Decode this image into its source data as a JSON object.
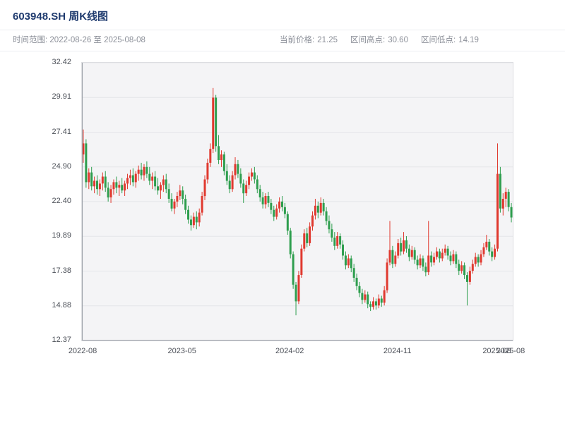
{
  "header": {
    "title": "603948.SH 周K线图"
  },
  "info_bar": {
    "time_range_label": "时间范围:",
    "time_range_value": "2022-08-26 至 2025-08-08",
    "stats": [
      {
        "label": "当前价格:",
        "value": "21.25"
      },
      {
        "label": "区间高点:",
        "value": "30.60"
      },
      {
        "label": "区间低点:",
        "value": "14.19"
      }
    ]
  },
  "colors": {
    "title": "#1e3a6e",
    "text_muted": "#8c9099",
    "axis_text": "#4d5159",
    "plot_bg": "#f4f4f6",
    "grid": "#e4e5e9",
    "axis_line": "#9ba0a8",
    "up": "#e0392f",
    "down": "#2e9e4e"
  },
  "chart_data": {
    "type": "candlestick",
    "title": "603948.SH 周K线图",
    "xlabel": "",
    "ylabel": "",
    "interval": "weekly",
    "grid": true,
    "legend": "none",
    "ylim": [
      12.37,
      32.42
    ],
    "y_ticks": [
      12.37,
      14.88,
      17.38,
      19.89,
      22.4,
      24.9,
      27.41,
      29.91,
      32.42
    ],
    "y_tick_labels": [
      "12.37",
      "14.88",
      "17.38",
      "19.89",
      "22.40",
      "24.90",
      "27.41",
      "29.91",
      "32.42"
    ],
    "x_ticks": [
      {
        "label": "2022-08",
        "week": 0
      },
      {
        "label": "2023-05",
        "week": 36
      },
      {
        "label": "2024-02",
        "week": 75
      },
      {
        "label": "2024-11",
        "week": 114
      },
      {
        "label": "2025-08",
        "week": 150
      },
      {
        "label": "2025-08",
        "week": 155
      }
    ],
    "up_color": "#e0392f",
    "down_color": "#2e9e4e",
    "ohlc_columns": [
      "open",
      "high",
      "low",
      "close"
    ],
    "ohlc": [
      [
        25.8,
        27.6,
        25.2,
        26.6
      ],
      [
        26.6,
        26.9,
        23.4,
        23.8
      ],
      [
        23.8,
        24.8,
        23.3,
        24.5
      ],
      [
        24.5,
        24.9,
        23.2,
        23.5
      ],
      [
        23.5,
        24.2,
        23.0,
        23.9
      ],
      [
        23.9,
        24.3,
        22.9,
        23.3
      ],
      [
        23.3,
        24.0,
        22.8,
        23.7
      ],
      [
        23.7,
        24.5,
        23.2,
        24.2
      ],
      [
        24.2,
        24.6,
        23.1,
        23.4
      ],
      [
        23.4,
        23.8,
        22.4,
        22.7
      ],
      [
        22.7,
        23.6,
        22.3,
        23.3
      ],
      [
        23.3,
        24.0,
        22.9,
        23.8
      ],
      [
        23.8,
        24.2,
        23.0,
        23.4
      ],
      [
        23.4,
        23.9,
        22.8,
        23.6
      ],
      [
        23.6,
        24.1,
        23.0,
        23.2
      ],
      [
        23.2,
        23.9,
        22.8,
        23.7
      ],
      [
        23.7,
        24.4,
        23.3,
        24.1
      ],
      [
        24.1,
        24.7,
        23.6,
        24.3
      ],
      [
        24.3,
        24.8,
        23.5,
        23.8
      ],
      [
        23.8,
        24.6,
        23.4,
        24.4
      ],
      [
        24.4,
        25.0,
        23.9,
        24.7
      ],
      [
        24.7,
        25.2,
        24.0,
        24.3
      ],
      [
        24.3,
        25.1,
        23.9,
        24.9
      ],
      [
        24.9,
        25.3,
        24.1,
        24.4
      ],
      [
        24.4,
        24.9,
        23.6,
        23.9
      ],
      [
        23.9,
        24.5,
        23.3,
        24.2
      ],
      [
        24.2,
        24.6,
        23.2,
        23.5
      ],
      [
        23.5,
        24.1,
        22.9,
        23.2
      ],
      [
        23.2,
        23.8,
        22.6,
        23.6
      ],
      [
        23.6,
        24.3,
        23.1,
        24.0
      ],
      [
        24.0,
        24.4,
        23.0,
        23.3
      ],
      [
        23.3,
        23.7,
        22.3,
        22.6
      ],
      [
        22.6,
        23.0,
        21.7,
        21.9
      ],
      [
        21.9,
        22.6,
        21.5,
        22.4
      ],
      [
        22.4,
        23.1,
        22.0,
        22.8
      ],
      [
        22.8,
        23.6,
        22.5,
        23.2
      ],
      [
        23.2,
        23.5,
        22.2,
        22.6
      ],
      [
        22.6,
        22.9,
        21.5,
        21.8
      ],
      [
        21.8,
        22.1,
        20.8,
        21.1
      ],
      [
        21.1,
        21.4,
        20.3,
        20.7
      ],
      [
        20.7,
        21.6,
        20.5,
        21.3
      ],
      [
        21.3,
        21.7,
        20.4,
        20.9
      ],
      [
        20.9,
        21.9,
        20.6,
        21.6
      ],
      [
        21.6,
        23.1,
        21.4,
        22.8
      ],
      [
        22.8,
        24.3,
        22.5,
        24.0
      ],
      [
        24.0,
        25.5,
        23.7,
        25.2
      ],
      [
        25.2,
        26.6,
        24.9,
        26.2
      ],
      [
        26.2,
        30.6,
        25.9,
        29.9
      ],
      [
        29.9,
        30.1,
        26.0,
        26.4
      ],
      [
        26.4,
        27.2,
        25.1,
        25.4
      ],
      [
        25.4,
        26.1,
        24.9,
        25.8
      ],
      [
        25.8,
        26.0,
        24.3,
        24.6
      ],
      [
        24.6,
        25.1,
        23.6,
        23.9
      ],
      [
        23.9,
        24.3,
        23.0,
        23.3
      ],
      [
        23.3,
        24.6,
        23.1,
        24.3
      ],
      [
        24.3,
        25.6,
        24.0,
        25.1
      ],
      [
        25.1,
        25.4,
        24.1,
        24.4
      ],
      [
        24.4,
        24.8,
        23.4,
        23.7
      ],
      [
        23.7,
        24.0,
        22.3,
        23.0
      ],
      [
        23.0,
        23.9,
        22.8,
        23.6
      ],
      [
        23.6,
        24.5,
        23.3,
        24.2
      ],
      [
        24.2,
        24.8,
        23.9,
        24.5
      ],
      [
        24.5,
        24.9,
        23.7,
        24.0
      ],
      [
        24.0,
        24.3,
        23.0,
        23.3
      ],
      [
        23.3,
        23.6,
        22.4,
        22.7
      ],
      [
        22.7,
        23.1,
        21.9,
        22.2
      ],
      [
        22.2,
        23.0,
        21.9,
        22.8
      ],
      [
        22.8,
        23.1,
        22.0,
        22.3
      ],
      [
        22.3,
        22.6,
        21.5,
        21.8
      ],
      [
        21.8,
        22.1,
        21.0,
        21.3
      ],
      [
        21.3,
        22.2,
        21.1,
        21.9
      ],
      [
        21.9,
        22.7,
        21.6,
        22.4
      ],
      [
        22.4,
        22.8,
        21.7,
        22.0
      ],
      [
        22.0,
        22.3,
        21.2,
        21.5
      ],
      [
        21.5,
        21.7,
        20.0,
        20.3
      ],
      [
        20.3,
        20.5,
        18.3,
        18.6
      ],
      [
        18.6,
        18.8,
        16.1,
        16.4
      ],
      [
        16.4,
        16.6,
        14.19,
        15.2
      ],
      [
        15.2,
        17.4,
        15.0,
        17.1
      ],
      [
        17.1,
        19.3,
        16.9,
        19.0
      ],
      [
        19.0,
        20.4,
        18.8,
        20.1
      ],
      [
        20.1,
        20.5,
        19.1,
        19.4
      ],
      [
        19.4,
        20.9,
        19.2,
        20.6
      ],
      [
        20.6,
        21.7,
        20.3,
        21.4
      ],
      [
        21.4,
        22.6,
        21.1,
        22.1
      ],
      [
        22.1,
        22.4,
        21.2,
        21.6
      ],
      [
        21.6,
        22.7,
        21.4,
        22.3
      ],
      [
        22.3,
        22.6,
        21.4,
        21.7
      ],
      [
        21.7,
        22.0,
        20.7,
        21.0
      ],
      [
        21.0,
        21.4,
        20.1,
        20.4
      ],
      [
        20.4,
        20.8,
        19.5,
        19.8
      ],
      [
        19.8,
        20.2,
        18.9,
        19.2
      ],
      [
        19.2,
        20.2,
        19.0,
        19.9
      ],
      [
        19.9,
        20.1,
        19.0,
        19.3
      ],
      [
        19.3,
        19.6,
        18.2,
        18.5
      ],
      [
        18.5,
        18.8,
        17.5,
        17.8
      ],
      [
        17.8,
        18.6,
        17.6,
        18.3
      ],
      [
        18.3,
        18.5,
        17.3,
        17.6
      ],
      [
        17.6,
        17.9,
        16.6,
        16.9
      ],
      [
        16.9,
        17.2,
        16.0,
        16.3
      ],
      [
        16.3,
        16.6,
        15.5,
        15.8
      ],
      [
        15.8,
        16.1,
        15.0,
        15.3
      ],
      [
        15.3,
        16.0,
        15.1,
        15.7
      ],
      [
        15.7,
        15.9,
        14.7,
        15.0
      ],
      [
        15.0,
        15.2,
        14.5,
        14.8
      ],
      [
        14.8,
        15.5,
        14.6,
        15.2
      ],
      [
        15.2,
        15.4,
        14.6,
        14.9
      ],
      [
        14.9,
        15.7,
        14.7,
        15.4
      ],
      [
        15.4,
        15.6,
        14.8,
        15.1
      ],
      [
        15.1,
        16.3,
        14.9,
        16.0
      ],
      [
        16.0,
        18.3,
        15.8,
        18.0
      ],
      [
        18.0,
        21.0,
        17.8,
        18.9
      ],
      [
        18.9,
        19.2,
        17.6,
        17.9
      ],
      [
        17.9,
        18.8,
        17.7,
        18.5
      ],
      [
        18.5,
        19.7,
        18.3,
        19.4
      ],
      [
        19.4,
        19.8,
        18.5,
        18.8
      ],
      [
        18.8,
        20.2,
        18.6,
        19.6
      ],
      [
        19.6,
        19.9,
        18.7,
        19.0
      ],
      [
        19.0,
        19.3,
        18.1,
        18.4
      ],
      [
        18.4,
        19.2,
        18.2,
        18.9
      ],
      [
        18.9,
        19.1,
        17.9,
        18.2
      ],
      [
        18.2,
        18.5,
        17.5,
        17.8
      ],
      [
        17.8,
        18.6,
        17.6,
        18.3
      ],
      [
        18.3,
        18.5,
        17.4,
        17.7
      ],
      [
        17.7,
        18.0,
        17.0,
        17.3
      ],
      [
        17.3,
        21.0,
        17.1,
        18.5
      ],
      [
        18.5,
        18.8,
        17.7,
        18.0
      ],
      [
        18.0,
        18.7,
        17.8,
        18.4
      ],
      [
        18.4,
        19.1,
        18.2,
        18.8
      ],
      [
        18.8,
        19.0,
        18.0,
        18.3
      ],
      [
        18.3,
        19.0,
        18.1,
        18.7
      ],
      [
        18.7,
        19.3,
        18.5,
        19.0
      ],
      [
        19.0,
        19.2,
        18.2,
        18.5
      ],
      [
        18.5,
        18.8,
        17.8,
        18.1
      ],
      [
        18.1,
        18.9,
        17.9,
        18.6
      ],
      [
        18.6,
        18.8,
        17.6,
        17.9
      ],
      [
        17.9,
        18.2,
        17.1,
        17.4
      ],
      [
        17.4,
        18.1,
        17.2,
        17.8
      ],
      [
        17.8,
        18.0,
        16.8,
        17.1
      ],
      [
        17.1,
        17.3,
        14.9,
        16.6
      ],
      [
        16.6,
        17.7,
        16.4,
        17.4
      ],
      [
        17.4,
        18.2,
        17.2,
        17.9
      ],
      [
        17.9,
        18.7,
        17.7,
        18.4
      ],
      [
        18.4,
        18.6,
        17.7,
        18.0
      ],
      [
        18.0,
        18.9,
        17.8,
        18.6
      ],
      [
        18.6,
        19.4,
        18.4,
        19.1
      ],
      [
        19.1,
        20.0,
        18.9,
        19.5
      ],
      [
        19.5,
        19.7,
        18.5,
        18.8
      ],
      [
        18.8,
        19.1,
        18.1,
        18.4
      ],
      [
        18.4,
        19.3,
        18.2,
        19.0
      ],
      [
        19.0,
        26.6,
        18.8,
        24.4
      ],
      [
        24.4,
        24.9,
        21.6,
        21.9
      ],
      [
        21.9,
        23.0,
        21.4,
        22.6
      ],
      [
        22.6,
        23.4,
        22.0,
        23.1
      ],
      [
        23.1,
        23.3,
        21.7,
        22.0
      ],
      [
        22.0,
        22.3,
        20.9,
        21.25
      ]
    ]
  }
}
